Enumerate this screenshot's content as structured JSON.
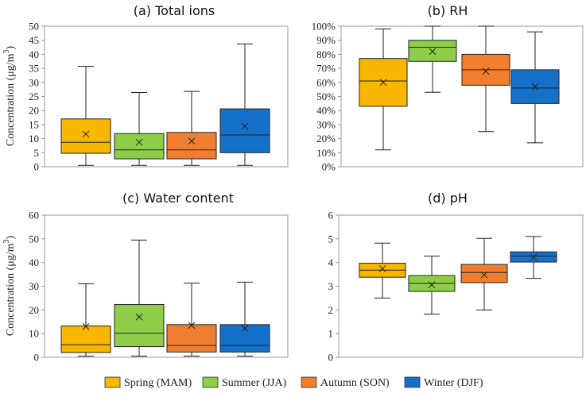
{
  "colors": {
    "spring": "#F7B600",
    "summer": "#8DCD47",
    "autumn": "#F07E2E",
    "winter": "#1570CA"
  },
  "legend": [
    {
      "label": "Spring (MAM)",
      "color": "#F7B600"
    },
    {
      "label": "Summer (JJA)",
      "color": "#8DCD47"
    },
    {
      "label": "Autumn (SON)",
      "color": "#F07E2E"
    },
    {
      "label": "Winter (DJF)",
      "color": "#1570CA"
    }
  ],
  "chart_data": [
    {
      "type": "boxplot",
      "title": "(a) Total ions",
      "ylabel_main": "Concentration (μg/m",
      "ylabel_sup": "3",
      "ylabel_close": ")",
      "ylim": [
        0,
        50
      ],
      "yticks": [
        0,
        5,
        10,
        15,
        20,
        25,
        30,
        35,
        40,
        45,
        50
      ],
      "ytick_labels": [
        "0",
        "5",
        "10",
        "15",
        "20",
        "25",
        "30",
        "35",
        "40",
        "45",
        "50"
      ],
      "series": [
        {
          "name": "Spring (MAM)",
          "min": 0.5,
          "q1": 4.8,
          "median": 8.7,
          "q3": 17.0,
          "max": 35.7,
          "mean": 11.6
        },
        {
          "name": "Summer (JJA)",
          "min": 0.5,
          "q1": 2.8,
          "median": 6.0,
          "q3": 11.8,
          "max": 26.4,
          "mean": 8.7
        },
        {
          "name": "Autumn (SON)",
          "min": 0.5,
          "q1": 2.8,
          "median": 6.0,
          "q3": 12.2,
          "max": 26.8,
          "mean": 9.1
        },
        {
          "name": "Winter (DJF)",
          "min": 0.5,
          "q1": 5.0,
          "median": 11.3,
          "q3": 20.6,
          "max": 43.7,
          "mean": 14.4
        }
      ]
    },
    {
      "type": "boxplot",
      "title": "(b) RH",
      "ylim": [
        0,
        100
      ],
      "yticks": [
        0,
        10,
        20,
        30,
        40,
        50,
        60,
        70,
        80,
        90,
        100
      ],
      "ytick_labels": [
        "0%",
        "10%",
        "20%",
        "30%",
        "40%",
        "50%",
        "60%",
        "70%",
        "80%",
        "90%",
        "100%"
      ],
      "series": [
        {
          "name": "Spring (MAM)",
          "min": 12,
          "q1": 43,
          "median": 61,
          "q3": 77,
          "max": 98,
          "mean": 60
        },
        {
          "name": "Summer (JJA)",
          "min": 53,
          "q1": 75,
          "median": 85,
          "q3": 90,
          "max": 100,
          "mean": 82
        },
        {
          "name": "Autumn (SON)",
          "min": 25,
          "q1": 58,
          "median": 69,
          "q3": 80,
          "max": 100,
          "mean": 68
        },
        {
          "name": "Winter (DJF)",
          "min": 17,
          "q1": 45,
          "median": 56,
          "q3": 69,
          "max": 96,
          "mean": 57
        }
      ]
    },
    {
      "type": "boxplot",
      "title": "(c) Water content",
      "ylabel_main": "Concentration (μg/m",
      "ylabel_sup": "3",
      "ylabel_close": ")",
      "ylim": [
        0,
        60
      ],
      "yticks": [
        0,
        10,
        20,
        30,
        40,
        50,
        60
      ],
      "ytick_labels": [
        "0",
        "10",
        "20",
        "30",
        "40",
        "50",
        "60"
      ],
      "series": [
        {
          "name": "Spring (MAM)",
          "min": 0.5,
          "q1": 2.0,
          "median": 5.3,
          "q3": 13.2,
          "max": 31.0,
          "mean": 13.0
        },
        {
          "name": "Summer (JJA)",
          "min": 0.5,
          "q1": 4.5,
          "median": 10.2,
          "q3": 22.3,
          "max": 49.5,
          "mean": 17.0
        },
        {
          "name": "Autumn (SON)",
          "min": 0.5,
          "q1": 2.2,
          "median": 5.0,
          "q3": 13.8,
          "max": 31.3,
          "mean": 13.5
        },
        {
          "name": "Winter (DJF)",
          "min": 0.5,
          "q1": 2.2,
          "median": 5.0,
          "q3": 13.8,
          "max": 31.7,
          "mean": 12.2
        }
      ]
    },
    {
      "type": "boxplot",
      "title": "(d) pH",
      "ylim": [
        0,
        6
      ],
      "yticks": [
        0,
        1,
        2,
        3,
        4,
        5,
        6
      ],
      "ytick_labels": [
        "0",
        "1",
        "2",
        "3",
        "4",
        "5",
        "6"
      ],
      "series": [
        {
          "name": "Spring (MAM)",
          "min": 2.5,
          "q1": 3.38,
          "median": 3.68,
          "q3": 3.97,
          "max": 4.82,
          "mean": 3.74
        },
        {
          "name": "Summer (JJA)",
          "min": 1.82,
          "q1": 2.78,
          "median": 3.12,
          "q3": 3.45,
          "max": 4.27,
          "mean": 3.06
        },
        {
          "name": "Autumn (SON)",
          "min": 2.0,
          "q1": 3.15,
          "median": 3.58,
          "q3": 3.92,
          "max": 5.02,
          "mean": 3.48
        },
        {
          "name": "Winter (DJF)",
          "min": 3.33,
          "q1": 4.02,
          "median": 4.27,
          "q3": 4.45,
          "max": 5.1,
          "mean": 4.23
        }
      ]
    }
  ]
}
